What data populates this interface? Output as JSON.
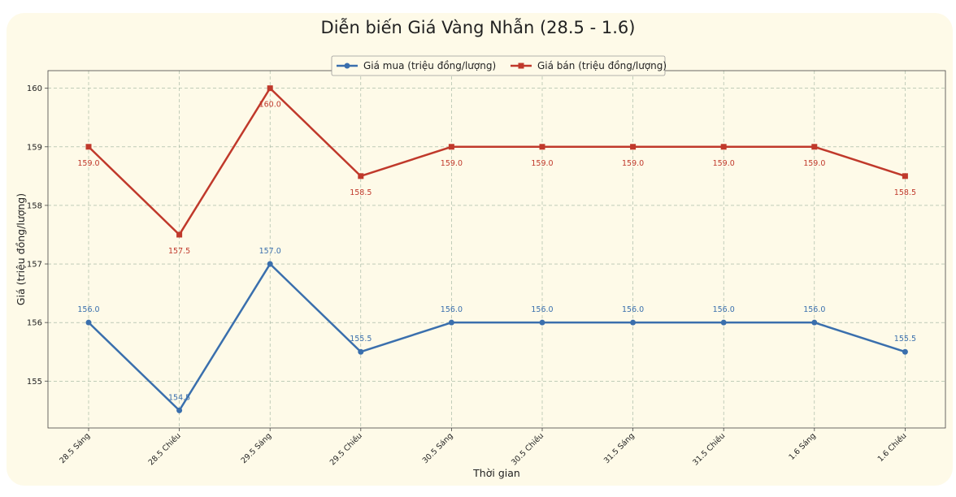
{
  "chart_data": {
    "type": "line",
    "title": "Diễn biến Giá Vàng Nhẫn (28.5 - 1.6)",
    "xlabel": "Thời gian",
    "ylabel": "Giá (triệu đồng/lượng)",
    "categories": [
      "28.5 Sáng",
      "28.5 Chiều",
      "29.5 Sáng",
      "29.5 Chiều",
      "30.5 Sáng",
      "30.5 Chiều",
      "31.5 Sáng",
      "31.5 Chiều",
      "1.6 Sáng",
      "1.6 Chiều"
    ],
    "ylim": [
      154.2,
      160.3
    ],
    "yticks": [
      155,
      156,
      157,
      158,
      159,
      160
    ],
    "grid": true,
    "legend_position": "top-center",
    "series": [
      {
        "name": "Giá mua (triệu đồng/lượng)",
        "color": "#3a6fad",
        "marker": "circle",
        "label_position": "above",
        "values": [
          156.0,
          154.5,
          157.0,
          155.5,
          156.0,
          156.0,
          156.0,
          156.0,
          156.0,
          155.5
        ],
        "labels": [
          "156.0",
          "154.5",
          "157.0",
          "155.5",
          "156.0",
          "156.0",
          "156.0",
          "156.0",
          "156.0",
          "155.5"
        ]
      },
      {
        "name": "Giá bán (triệu đồng/lượng)",
        "color": "#c0392b",
        "marker": "square",
        "label_position": "below",
        "values": [
          159.0,
          157.5,
          160.0,
          158.5,
          159.0,
          159.0,
          159.0,
          159.0,
          159.0,
          158.5
        ],
        "labels": [
          "159.0",
          "157.5",
          "160.0",
          "158.5",
          "159.0",
          "159.0",
          "159.0",
          "159.0",
          "159.0",
          "158.5"
        ]
      }
    ]
  }
}
